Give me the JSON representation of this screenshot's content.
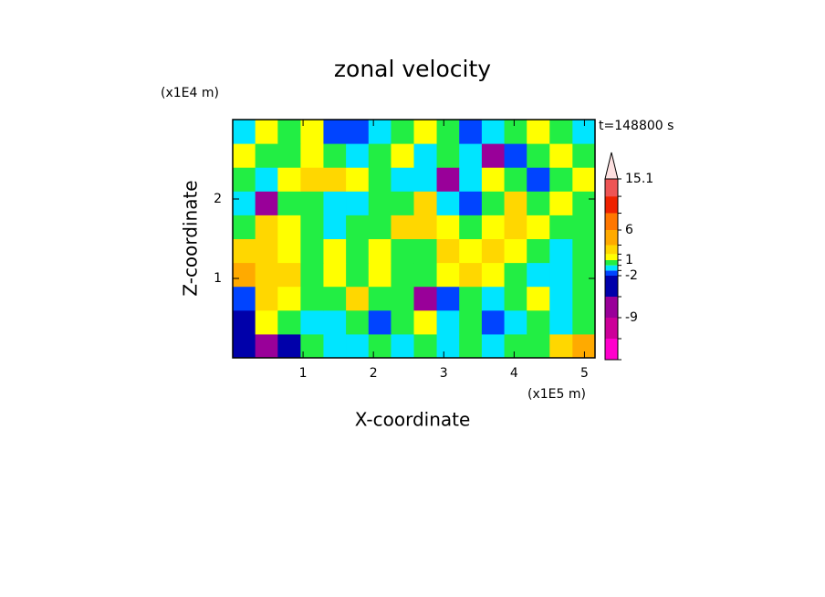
{
  "chart_data": {
    "type": "contour",
    "title": "zonal velocity",
    "x_label": "X-coordinate",
    "y_label": "Z-coordinate",
    "x_unit": "(x1E5 m)",
    "y_unit": "(x1E4 m)",
    "annotation": "t=148800 s",
    "xlim": [
      0,
      5.15
    ],
    "xticks": [
      1,
      2,
      3,
      4,
      5
    ],
    "ylim": [
      0,
      3
    ],
    "yticks": [
      1,
      2
    ],
    "x": [
      0.16,
      0.48,
      0.8,
      1.13,
      1.45,
      1.77,
      2.09,
      2.41,
      2.74,
      3.06,
      3.38,
      3.7,
      4.02,
      4.34,
      4.67,
      4.99
    ],
    "z": [
      0.15,
      0.45,
      0.75,
      1.05,
      1.35,
      1.65,
      1.95,
      2.25,
      2.55,
      2.85
    ],
    "values": [
      [
        -3,
        -9,
        -4,
        0.5,
        -0.5,
        -0.5,
        0.5,
        -0.5,
        0.5,
        -0.5,
        0.5,
        -0.5,
        0.5,
        0.5,
        2.5,
        4
      ],
      [
        -5,
        1.5,
        0.5,
        -0.5,
        -0.5,
        0.5,
        -1.5,
        0.5,
        1.5,
        -0.5,
        0.5,
        -1.5,
        -0.5,
        0.5,
        -0.5,
        0.5
      ],
      [
        -1.5,
        2.5,
        1.5,
        0.5,
        0.5,
        2.5,
        0.5,
        0.5,
        -6,
        -1.5,
        0.5,
        -0.5,
        0.5,
        1.5,
        -0.5,
        0.5
      ],
      [
        5,
        3,
        2.5,
        0.5,
        1.5,
        0.5,
        1.5,
        0.5,
        0.5,
        1.5,
        2.5,
        1.5,
        0.5,
        -0.5,
        -0.5,
        0.5
      ],
      [
        3,
        2.5,
        1.5,
        0.5,
        1.5,
        0.5,
        1.5,
        0.5,
        0.5,
        2.5,
        1.5,
        2.5,
        1.5,
        0.5,
        -0.5,
        0.5
      ],
      [
        0.5,
        2.5,
        1.5,
        0.5,
        -0.5,
        0.5,
        0.5,
        2.5,
        2.5,
        1.5,
        0.5,
        1.5,
        2.5,
        1.5,
        0.5,
        0.5
      ],
      [
        -0.5,
        -6,
        0.5,
        0.5,
        -0.5,
        -0.5,
        0.5,
        0.5,
        2.5,
        -0.5,
        -1.5,
        0.5,
        2.5,
        0.5,
        1.5,
        0.5
      ],
      [
        0.5,
        -0.5,
        1.5,
        2.5,
        2.5,
        1.5,
        0.5,
        -0.5,
        -0.5,
        -6,
        -0.5,
        1.5,
        0.5,
        -1.5,
        0.5,
        1.5
      ],
      [
        1.5,
        0.5,
        0.5,
        1.5,
        0.5,
        -0.5,
        0.5,
        1.5,
        -0.5,
        0.5,
        -0.5,
        -6,
        -1.5,
        0.5,
        1.5,
        0.5
      ],
      [
        -0.5,
        1.5,
        0.5,
        1.5,
        -1.5,
        -1.5,
        -0.5,
        0.5,
        1.5,
        0.5,
        -1.5,
        -0.5,
        0.5,
        1.5,
        0.5,
        -0.5
      ]
    ],
    "levels": [
      -16,
      -12.5,
      -9,
      -5.5,
      -2,
      -1,
      0,
      1,
      2,
      3.5,
      6,
      9,
      12,
      15.1
    ],
    "colors": [
      "#ff00cc",
      "#cc0099",
      "#990099",
      "#0000aa",
      "#0044ff",
      "#00e5ff",
      "#22ee44",
      "#ffff00",
      "#ffd700",
      "#ffaa00",
      "#ff7700",
      "#ee2200",
      "#ee5555",
      "#f4a0a0"
    ],
    "over_color": "#fde0e0",
    "cbar_ticks": [
      -9,
      -2,
      1,
      6,
      15.1
    ]
  }
}
